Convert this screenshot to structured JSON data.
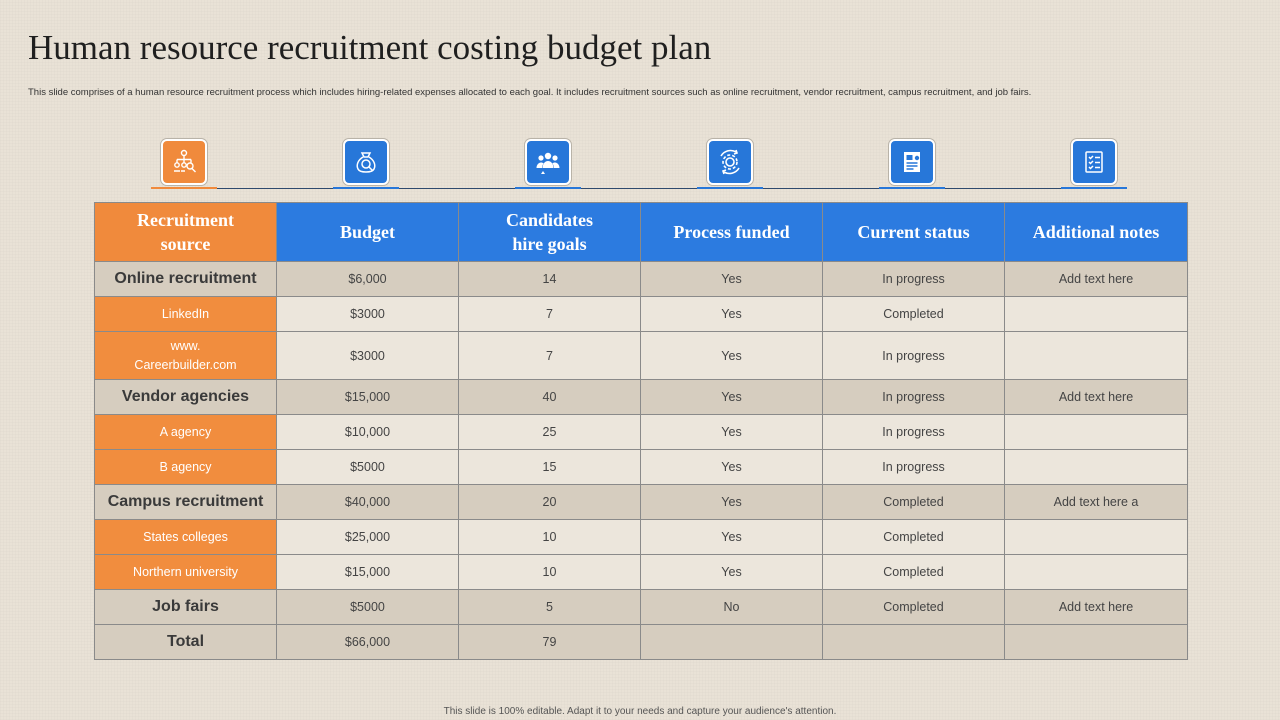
{
  "title": "Human resource recruitment costing budget plan",
  "subtitle": "This slide comprises of a human resource recruitment process which includes hiring-related expenses allocated to each goal. It includes recruitment sources such as online recruitment, vendor recruitment, campus recruitment, and job fairs.",
  "icons": [
    {
      "name": "org-chart-search-icon",
      "color": "#f08a3c"
    },
    {
      "name": "money-bag-search-icon",
      "color": "#2777d9"
    },
    {
      "name": "people-group-icon",
      "color": "#2777d9"
    },
    {
      "name": "gear-cycle-icon",
      "color": "#2777d9"
    },
    {
      "name": "document-check-icon",
      "color": "#2777d9"
    },
    {
      "name": "checklist-icon",
      "color": "#2777d9"
    }
  ],
  "table": {
    "headers": [
      "Recruitment source",
      "Budget",
      "Candidates hire goals",
      "Process funded",
      "Current status",
      "Additional  notes"
    ],
    "rows": [
      {
        "type": "group",
        "cells": [
          "Online recruitment",
          "$6,000",
          "14",
          "Yes",
          "In progress",
          "Add text here"
        ]
      },
      {
        "type": "sub",
        "cells": [
          "LinkedIn",
          "$3000",
          "7",
          "Yes",
          "Completed",
          ""
        ]
      },
      {
        "type": "sub",
        "cells": [
          "www. Careerbuilder.com",
          "$3000",
          "7",
          "Yes",
          "In progress",
          ""
        ]
      },
      {
        "type": "group",
        "cells": [
          "Vendor agencies",
          "$15,000",
          "40",
          "Yes",
          "In progress",
          "Add text here"
        ]
      },
      {
        "type": "sub",
        "cells": [
          "A agency",
          "$10,000",
          "25",
          "Yes",
          "In progress",
          ""
        ]
      },
      {
        "type": "sub",
        "cells": [
          "B agency",
          "$5000",
          "15",
          "Yes",
          "In progress",
          ""
        ]
      },
      {
        "type": "group",
        "cells": [
          "Campus recruitment",
          "$40,000",
          "20",
          "Yes",
          "Completed",
          "Add text here  a"
        ]
      },
      {
        "type": "sub",
        "cells": [
          "States colleges",
          "$25,000",
          "10",
          "Yes",
          "Completed",
          ""
        ]
      },
      {
        "type": "sub",
        "cells": [
          "Northern university",
          "$15,000",
          "10",
          "Yes",
          "Completed",
          ""
        ]
      },
      {
        "type": "group",
        "cells": [
          "Job fairs",
          "$5000",
          "5",
          "No",
          "Completed",
          "Add text here"
        ]
      },
      {
        "type": "total",
        "cells": [
          "Total",
          "$66,000",
          "79",
          "",
          "",
          ""
        ]
      }
    ]
  },
  "footer": "This slide is 100% editable.  Adapt it to your needs and capture your audience's attention.",
  "colors": {
    "orange": "#f08a3c",
    "blue": "#2c7be0",
    "group_row": "#d6cdbf",
    "sub_row": "#ece6dc"
  }
}
